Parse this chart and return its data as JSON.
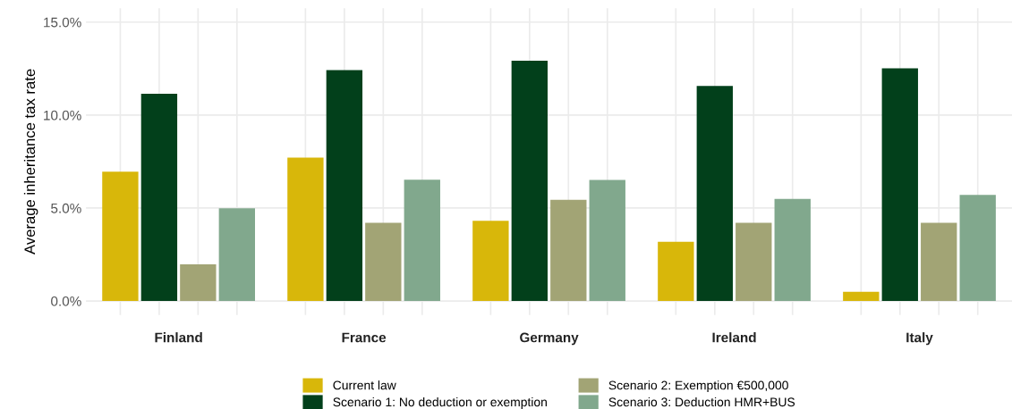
{
  "chart_data": {
    "type": "bar",
    "ylabel": "Average inheritance tax rate",
    "categories": [
      "Finland",
      "France",
      "Germany",
      "Ireland",
      "Italy"
    ],
    "series": [
      {
        "name": "Current law",
        "color": "#d8b70a",
        "values": [
          6.95,
          7.71,
          4.31,
          3.19,
          0.49
        ]
      },
      {
        "name": "Scenario 1: No deduction or exemption",
        "color": "#02401b",
        "values": [
          11.15,
          12.42,
          12.92,
          11.57,
          12.51
        ]
      },
      {
        "name": "Scenario 2: Exemption €500,000",
        "color": "#a2a475",
        "values": [
          1.97,
          4.21,
          5.44,
          4.21,
          4.21
        ]
      },
      {
        "name": "Scenario 3: Deduction HMR+BUS",
        "color": "#81a88d",
        "values": [
          4.98,
          6.52,
          6.51,
          5.49,
          5.71
        ]
      }
    ],
    "ylim": [
      -0.75,
      15.75
    ],
    "yticks": [
      {
        "value": 0,
        "label": "0.0%"
      },
      {
        "value": 5,
        "label": "5.0%"
      },
      {
        "value": 10,
        "label": "10.0%"
      },
      {
        "value": 15,
        "label": "15.0%"
      }
    ],
    "grid": true,
    "legend": "bottom"
  }
}
